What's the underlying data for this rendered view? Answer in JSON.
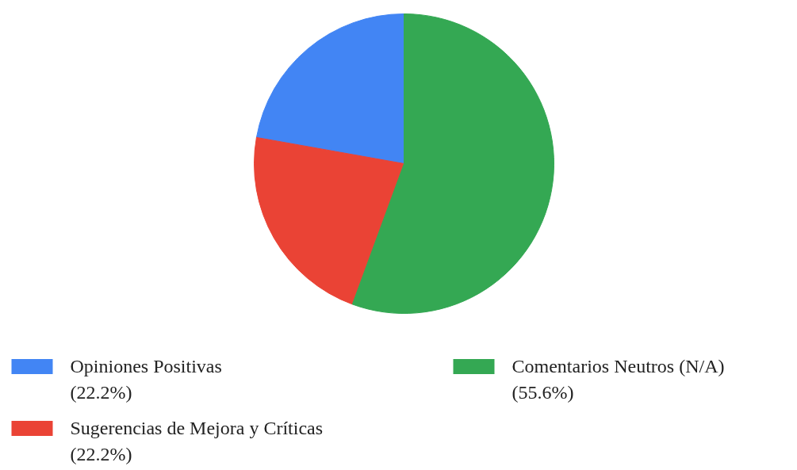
{
  "chart_data": {
    "type": "pie",
    "categories": [
      "Opiniones Positivas",
      "Sugerencias de Mejora y Críticas",
      "Comentarios Neutros (N/A)"
    ],
    "values": [
      22.2,
      22.2,
      55.6
    ],
    "value_labels": [
      "(22.2%)",
      "(22.2%)",
      "(55.6%)"
    ],
    "colors": [
      "#4285f4",
      "#ea4335",
      "#34a853"
    ],
    "legend": "bottom"
  }
}
